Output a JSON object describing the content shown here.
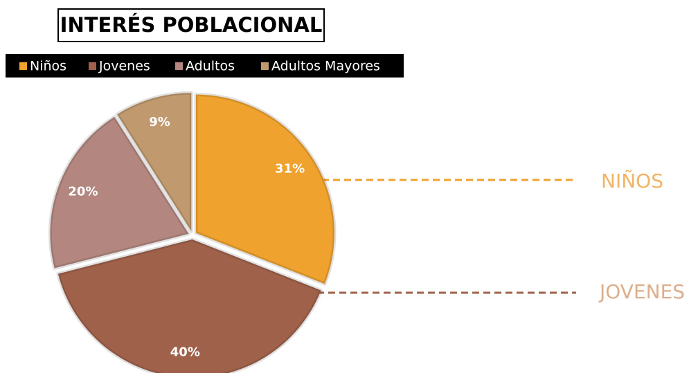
{
  "chart_data": {
    "type": "pie",
    "title": "INTERÉS POBLACIONAL",
    "categories": [
      "Niños",
      "Jovenes",
      "Adultos",
      "Adultos Mayores"
    ],
    "values": [
      31,
      40,
      20,
      9
    ],
    "value_labels": [
      "31%",
      "40%",
      "20%",
      "9%"
    ],
    "colors": [
      "#EFA22E",
      "#A0614A",
      "#B3877F",
      "#C09A6E"
    ],
    "legend": "top",
    "annotations": [
      "NIÑOS",
      "JOVENES"
    ]
  }
}
